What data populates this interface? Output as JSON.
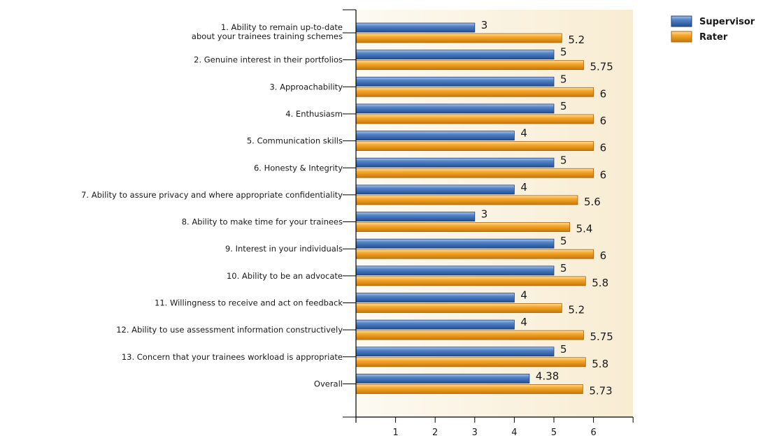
{
  "chart_data": {
    "type": "bar",
    "orientation": "horizontal",
    "categories": [
      "1. Ability to remain up-to-date\nabout your trainees training schemes",
      "2. Genuine interest in their portfolios",
      "3. Approachability",
      "4. Enthusiasm",
      "5. Communication skills",
      "6. Honesty & Integrity",
      "7. Ability to assure privacy and where appropriate confidentiality",
      "8. Ability to make time for your trainees",
      "9. Interest in your individuals",
      "10. Ability to be an advocate",
      "11. Willingness to receive and act on feedback",
      "12. Ability to use assessment information constructively",
      "13. Concern that your trainees workload is appropriate",
      "Overall"
    ],
    "series": [
      {
        "name": "Supervisor",
        "color": "#3d6fb6",
        "values": [
          3,
          5,
          5,
          5,
          4,
          5,
          4,
          3,
          5,
          5,
          4,
          4,
          5,
          4.38
        ],
        "labels": [
          "3",
          "5",
          "5",
          "5",
          "4",
          "5",
          "4",
          "3",
          "5",
          "5",
          "4",
          "4",
          "5",
          "4.38"
        ]
      },
      {
        "name": "Rater",
        "color": "#f5a623",
        "values": [
          5.2,
          5.75,
          6,
          6,
          6,
          6,
          5.6,
          5.4,
          6,
          5.8,
          5.2,
          5.75,
          5.8,
          5.73
        ],
        "labels": [
          "5.2",
          "5.75",
          "6",
          "6",
          "6",
          "6",
          "5.6",
          "5.4",
          "6",
          "5.8",
          "5.2",
          "5.75",
          "5.8",
          "5.73"
        ]
      }
    ],
    "xlim": [
      0,
      7
    ],
    "xticks": [
      "1",
      "2",
      "3",
      "4",
      "5",
      "6"
    ],
    "legend_position": "top-right",
    "grid": false,
    "title": "",
    "xlabel": "",
    "ylabel": ""
  }
}
